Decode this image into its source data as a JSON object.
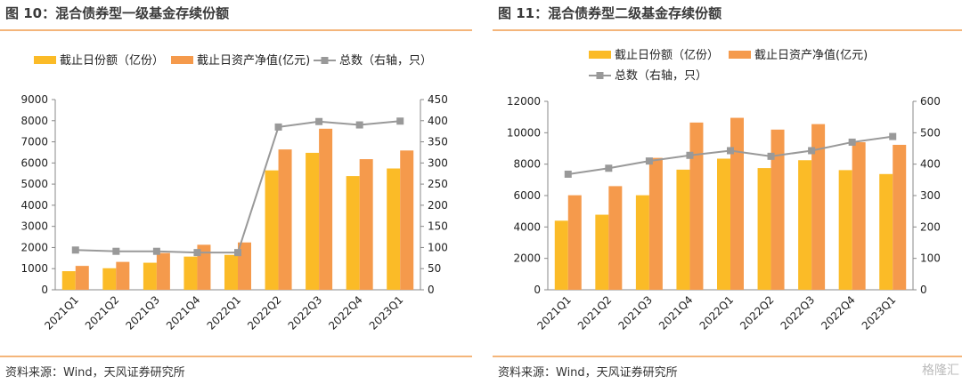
{
  "left": {
    "title": "图 10：混合债券型一级基金存续份额",
    "source": "资料来源：Wind，天风证券研究所"
  },
  "right": {
    "title": "图 11：混合债券型二级基金存续份额",
    "source": "资料来源：Wind，天风证券研究所"
  },
  "watermark": "格隆汇",
  "colors": {
    "bar1": "#fbbb27",
    "bar2": "#f59a4c",
    "line": "#999999",
    "rule": "#f4b57a"
  },
  "chart_data": [
    {
      "type": "bar",
      "categories": [
        "2021Q1",
        "2021Q2",
        "2021Q3",
        "2021Q4",
        "2022Q1",
        "2022Q2",
        "2022Q3",
        "2022Q4",
        "2023Q1"
      ],
      "series": [
        {
          "name": "截止日份额（亿份）",
          "type": "bar",
          "axis": "left",
          "values": [
            880,
            1020,
            1280,
            1570,
            1650,
            5650,
            6480,
            5380,
            5740
          ]
        },
        {
          "name": "截止日资产净值(亿元)",
          "type": "bar",
          "axis": "left",
          "values": [
            1130,
            1320,
            1740,
            2130,
            2240,
            6640,
            7620,
            6180,
            6590
          ]
        },
        {
          "name": "总数（右轴，只）",
          "type": "line",
          "axis": "right",
          "values": [
            94,
            91,
            91,
            88,
            88,
            385,
            398,
            390,
            399
          ]
        }
      ],
      "ylim": [
        0,
        9000
      ],
      "yticks": [
        0,
        1000,
        2000,
        3000,
        4000,
        5000,
        6000,
        7000,
        8000,
        9000
      ],
      "y2lim": [
        0,
        450
      ],
      "y2ticks": [
        0,
        50,
        100,
        150,
        200,
        250,
        300,
        350,
        400,
        450
      ],
      "legend": "top"
    },
    {
      "type": "bar",
      "categories": [
        "2021Q1",
        "2021Q2",
        "2021Q3",
        "2021Q4",
        "2022Q1",
        "2022Q2",
        "2022Q3",
        "2022Q4",
        "2023Q1"
      ],
      "series": [
        {
          "name": "截止日份额（亿份）",
          "type": "bar",
          "axis": "left",
          "values": [
            4400,
            4780,
            6020,
            7650,
            8350,
            7750,
            8250,
            7620,
            7370
          ]
        },
        {
          "name": "截止日资产净值(亿元)",
          "type": "bar",
          "axis": "left",
          "values": [
            6020,
            6600,
            8400,
            10650,
            10950,
            10200,
            10550,
            9400,
            9230
          ]
        },
        {
          "name": "总数（右轴，只）",
          "type": "line",
          "axis": "right",
          "values": [
            368,
            387,
            410,
            428,
            443,
            425,
            443,
            470,
            488
          ]
        }
      ],
      "ylim": [
        0,
        12000
      ],
      "yticks": [
        0,
        2000,
        4000,
        6000,
        8000,
        10000,
        12000
      ],
      "y2lim": [
        0,
        600
      ],
      "y2ticks": [
        0,
        100,
        200,
        300,
        400,
        500,
        600
      ],
      "legend": "top"
    }
  ]
}
